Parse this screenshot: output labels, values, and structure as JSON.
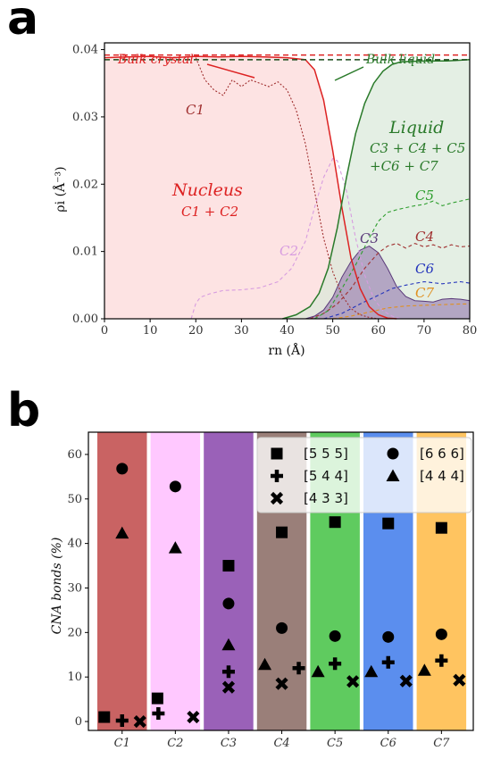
{
  "panel_a": {
    "letter": "a",
    "ylabel": "ρi (Å⁻³)",
    "xlabel": "rn (Å)",
    "labels": {
      "bulk_crystal": "Bulk crystal",
      "bulk_liquid": "Bulk liquid",
      "nucleus": "Nucleus",
      "nucleus_sum": "C1 + C2",
      "liquid": "Liquid",
      "liquid_sum_1": "C3 + C4 + C5",
      "liquid_sum_2": "+C6 + C7",
      "c1": "C1",
      "c2": "C2",
      "c3": "C3",
      "c4": "C4",
      "c5": "C5",
      "c6": "C6",
      "c7": "C7"
    }
  },
  "panel_b": {
    "letter": "b",
    "ylabel": "CNA bonds (%)",
    "legend": [
      "[5 5 5]",
      "[6 6 6]",
      "[5 4 4]",
      "[4 4 4]",
      "[4 3 3]"
    ]
  },
  "colors": {
    "crystal_red": "#dd2222",
    "liquid_green": "#2a7a2a",
    "dark_red": "#a03030",
    "c1": "#c96363",
    "c2": "#ffc8ff",
    "c3": "#9a61b8",
    "c4": "#9a7f79",
    "c5": "#5fcb5f",
    "c6": "#5b8eee",
    "c7": "#ffc460"
  },
  "chart_data": [
    {
      "type": "line",
      "title": "",
      "xlabel": "rn (Å)",
      "ylabel": "ρi (Å⁻³)",
      "xlim": [
        0,
        80
      ],
      "ylim": [
        0,
        0.041
      ],
      "xticks": [
        0,
        10,
        20,
        30,
        40,
        50,
        60,
        70,
        80
      ],
      "yticks": [
        0.0,
        0.01,
        0.02,
        0.03,
        0.04
      ],
      "ytick_labels": [
        "0.00",
        "0.01",
        "0.02",
        "0.03",
        "0.04"
      ],
      "reference_lines": [
        {
          "name": "Bulk crystal",
          "y": 0.0392,
          "style": "dashed"
        },
        {
          "name": "Bulk liquid",
          "y": 0.0385,
          "style": "dashed"
        }
      ],
      "series": [
        {
          "name": "Nucleus",
          "style": "solid",
          "x": [
            0,
            5,
            10,
            15,
            20,
            25,
            30,
            35,
            40,
            44,
            46,
            48,
            50,
            52,
            54,
            56,
            58,
            60,
            62,
            64
          ],
          "y": [
            0.0388,
            0.0389,
            0.039,
            0.0388,
            0.039,
            0.0389,
            0.039,
            0.0389,
            0.0388,
            0.0385,
            0.037,
            0.0325,
            0.025,
            0.0165,
            0.009,
            0.0045,
            0.0018,
            0.0006,
            0.0001,
            0.0
          ]
        },
        {
          "name": "Liquid",
          "style": "solid",
          "x": [
            39,
            42,
            45,
            47,
            49,
            51,
            53,
            55,
            57,
            59,
            61,
            63,
            65,
            70,
            75,
            80
          ],
          "y": [
            0.0,
            0.0006,
            0.0018,
            0.0038,
            0.0075,
            0.0135,
            0.021,
            0.0275,
            0.032,
            0.035,
            0.0368,
            0.0378,
            0.0382,
            0.0383,
            0.0383,
            0.0385
          ]
        },
        {
          "name": "C1",
          "style": "dotted",
          "x": [
            20,
            22,
            24,
            26,
            28,
            30,
            32,
            34,
            36,
            38,
            40,
            42,
            44,
            46,
            48,
            50,
            52,
            54,
            56,
            58,
            60
          ],
          "y": [
            0.0388,
            0.0355,
            0.034,
            0.0332,
            0.0355,
            0.0345,
            0.0355,
            0.035,
            0.0345,
            0.0352,
            0.034,
            0.031,
            0.026,
            0.019,
            0.012,
            0.007,
            0.0035,
            0.0015,
            0.0006,
            0.0002,
            0.0
          ]
        },
        {
          "name": "C2",
          "style": "dashed",
          "x": [
            19,
            20,
            21,
            23,
            26,
            30,
            34,
            38,
            41,
            44,
            46,
            48,
            50,
            51,
            53,
            55,
            57,
            59,
            61,
            63,
            65
          ],
          "y": [
            0.0,
            0.0023,
            0.0032,
            0.0037,
            0.0042,
            0.0043,
            0.0046,
            0.0055,
            0.0075,
            0.0115,
            0.0165,
            0.021,
            0.0238,
            0.0235,
            0.019,
            0.012,
            0.0065,
            0.003,
            0.0012,
            0.0004,
            0.0
          ]
        },
        {
          "name": "C3",
          "style": "filled",
          "x": [
            44,
            46,
            48,
            50,
            52,
            54,
            56,
            58,
            60,
            62,
            64,
            66,
            68,
            70,
            72,
            74,
            76,
            78,
            80
          ],
          "y": [
            0.0,
            0.0004,
            0.0013,
            0.0032,
            0.0062,
            0.0085,
            0.0102,
            0.0108,
            0.0098,
            0.0075,
            0.0048,
            0.0033,
            0.0027,
            0.0026,
            0.0025,
            0.0029,
            0.003,
            0.0029,
            0.0027
          ]
        },
        {
          "name": "C4",
          "style": "dashed",
          "x": [
            45,
            48,
            51,
            54,
            57,
            60,
            62,
            64,
            66,
            68,
            70,
            72,
            74,
            76,
            78,
            80
          ],
          "y": [
            0.0,
            0.0008,
            0.0022,
            0.0045,
            0.0075,
            0.0098,
            0.0108,
            0.0112,
            0.0105,
            0.0112,
            0.0107,
            0.011,
            0.0105,
            0.011,
            0.0107,
            0.0108
          ]
        },
        {
          "name": "C5",
          "style": "dashed",
          "x": [
            46,
            49,
            52,
            55,
            58,
            60,
            62,
            64,
            66,
            68,
            70,
            72,
            74,
            76,
            78,
            80
          ],
          "y": [
            0.0,
            0.0012,
            0.0045,
            0.008,
            0.012,
            0.0145,
            0.0158,
            0.0162,
            0.0165,
            0.0168,
            0.017,
            0.0175,
            0.0168,
            0.0172,
            0.0175,
            0.0178
          ]
        },
        {
          "name": "C6",
          "style": "dashed",
          "x": [
            48,
            52,
            56,
            60,
            63,
            66,
            70,
            74,
            78,
            80
          ],
          "y": [
            0.0,
            0.0008,
            0.0022,
            0.0035,
            0.0045,
            0.005,
            0.0055,
            0.0052,
            0.0055,
            0.0053
          ]
        },
        {
          "name": "C7",
          "style": "dashed",
          "x": [
            50,
            54,
            58,
            62,
            66,
            70,
            74,
            78,
            80
          ],
          "y": [
            0.0,
            0.0004,
            0.001,
            0.0016,
            0.0019,
            0.002,
            0.0021,
            0.0022,
            0.0022
          ]
        }
      ]
    },
    {
      "type": "scatter",
      "title": "",
      "xlabel": "",
      "ylabel": "CNA bonds (%)",
      "categories": [
        "C1",
        "C2",
        "C3",
        "C4",
        "C5",
        "C6",
        "C7"
      ],
      "ylim": [
        -2,
        65
      ],
      "yticks": [
        0,
        10,
        20,
        30,
        40,
        50,
        60
      ],
      "legend_position": "top-right",
      "series": [
        {
          "name": "[5 5 5]",
          "marker": "square",
          "values": [
            1.0,
            5.2,
            35.0,
            42.5,
            44.8,
            44.5,
            43.5
          ]
        },
        {
          "name": "[6 6 6]",
          "marker": "circle",
          "values": [
            56.8,
            52.8,
            26.5,
            21.0,
            19.2,
            19.0,
            19.6
          ]
        },
        {
          "name": "[5 4 4]",
          "marker": "plus",
          "values": [
            0.2,
            1.8,
            11.2,
            12.0,
            13.0,
            13.3,
            13.7
          ]
        },
        {
          "name": "[4 4 4]",
          "marker": "triangle",
          "values": [
            42.3,
            39.0,
            17.2,
            12.8,
            11.2,
            11.2,
            11.5
          ]
        },
        {
          "name": "[4 3 3]",
          "marker": "x",
          "values": [
            0.0,
            1.0,
            7.7,
            8.5,
            9.0,
            9.1,
            9.3
          ]
        }
      ]
    }
  ]
}
